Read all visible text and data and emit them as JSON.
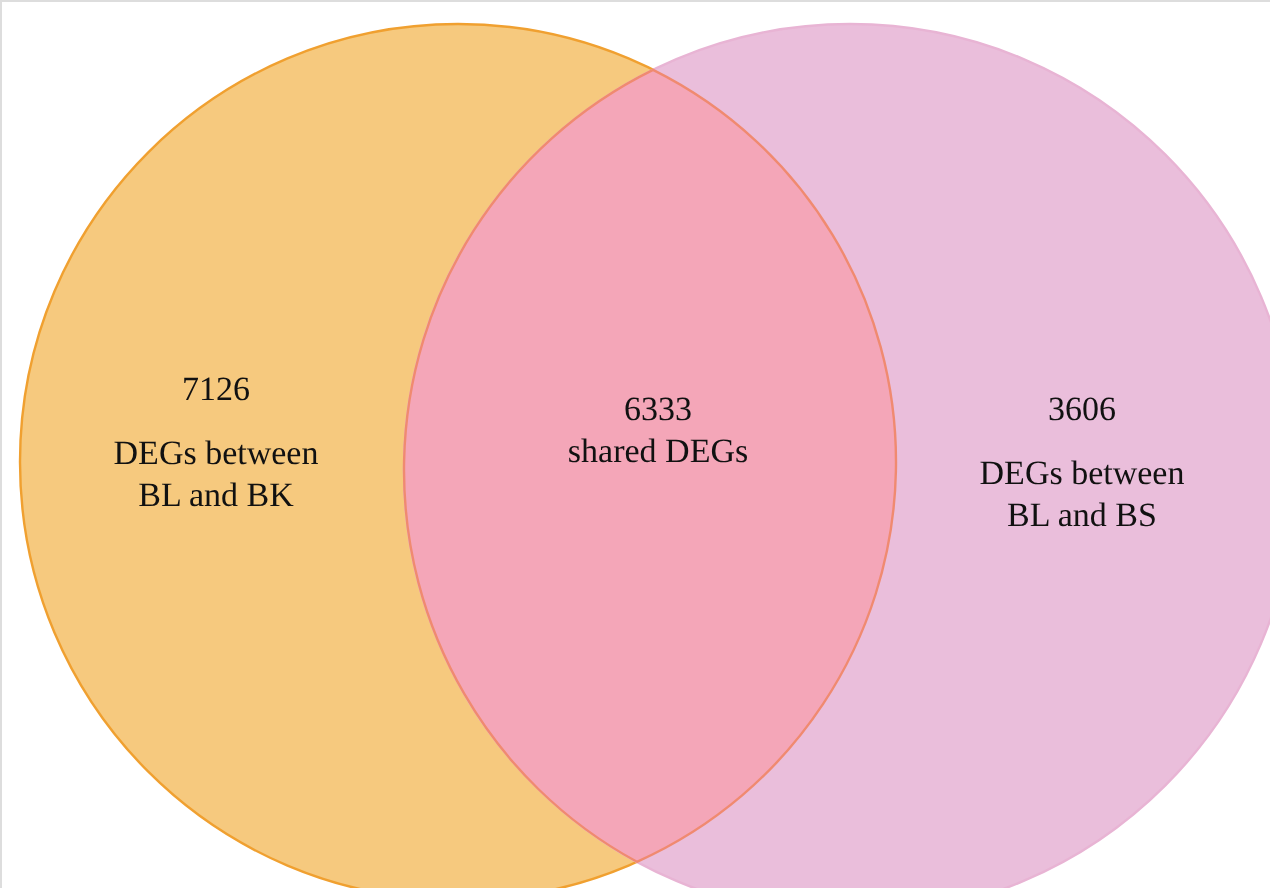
{
  "chart_data": {
    "type": "other",
    "categories": [
      "DEGs between\nBL and BK",
      "shared DEGs",
      "DEGs between\nBL and BS"
    ],
    "values": [
      7126,
      6333,
      3606
    ],
    "colors": [
      "#f6c97e",
      "#f4a6b8",
      "#eabedb"
    ],
    "data_labels": true
  }
}
